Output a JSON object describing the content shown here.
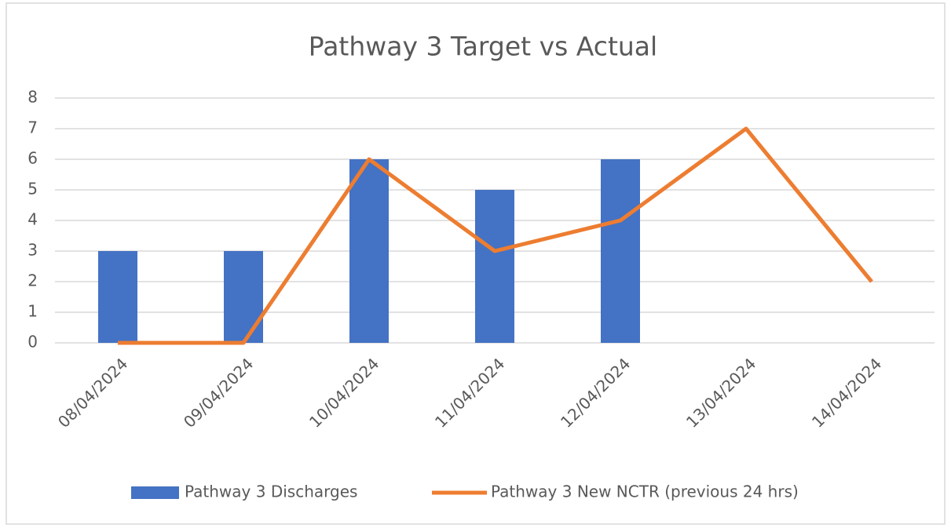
{
  "chart_data": {
    "type": "combo",
    "title": "Pathway 3  Target vs Actual",
    "categories": [
      "08/04/2024",
      "09/04/2024",
      "10/04/2024",
      "11/04/2024",
      "12/04/2024",
      "13/04/2024",
      "14/04/2024"
    ],
    "series": [
      {
        "name": "Pathway 3 Discharges",
        "type": "bar",
        "color": "#4472c4",
        "values": [
          3,
          3,
          6,
          5,
          6,
          null,
          null
        ]
      },
      {
        "name": "Pathway 3 New NCTR (previous 24 hrs)",
        "type": "line",
        "color": "#ed7d31",
        "values": [
          0,
          0,
          6,
          3,
          4,
          7,
          2
        ]
      }
    ],
    "ylim": [
      0,
      8
    ],
    "yticks": [
      0,
      1,
      2,
      3,
      4,
      5,
      6,
      7,
      8
    ],
    "grid": true,
    "legend": "bottom"
  }
}
